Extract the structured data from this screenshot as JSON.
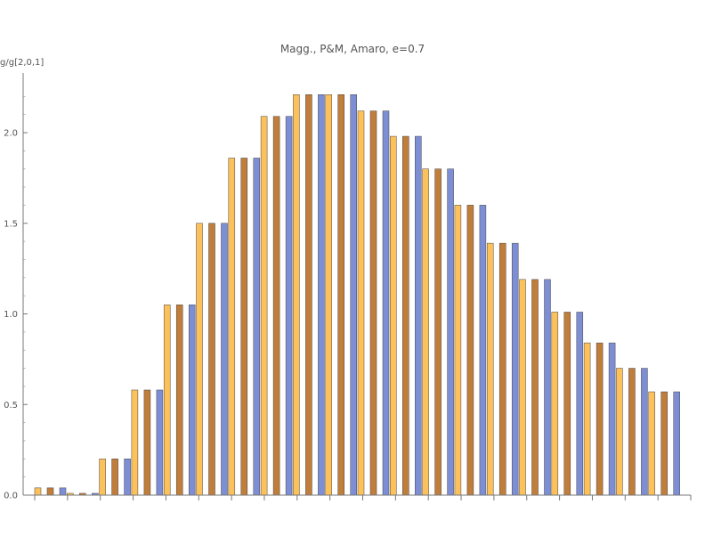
{
  "chart_data": {
    "type": "bar",
    "title": "Magg., P&M, Amaro, e=0.7",
    "ylabel": "g/g[2,0,1]",
    "xlabel": "",
    "ylim": [
      0,
      2.3
    ],
    "yticks": [
      0.0,
      0.5,
      1.0,
      1.5,
      2.0
    ],
    "ytick_labels": [
      "0.0",
      "0.5",
      "1.0",
      "1.5",
      "2.0"
    ],
    "x_tick_count": 21,
    "grid": false,
    "series": [
      {
        "color": "#FDC15B",
        "values": [
          0.04,
          0.01,
          0.2,
          0.58,
          1.05,
          1.5,
          1.86,
          2.09,
          2.21,
          2.21,
          2.12,
          1.98,
          1.8,
          1.6,
          1.39,
          1.19,
          1.01,
          0.84,
          0.7,
          0.57
        ]
      },
      {
        "color": "#C17D3A",
        "values": [
          0.04,
          0.01,
          0.2,
          0.58,
          1.05,
          1.5,
          1.86,
          2.09,
          2.21,
          2.21,
          2.12,
          1.98,
          1.8,
          1.6,
          1.39,
          1.19,
          1.01,
          0.84,
          0.7,
          0.57
        ]
      },
      {
        "color": "#7D8ED4",
        "values": [
          0.04,
          0.01,
          0.2,
          0.58,
          1.05,
          1.5,
          1.86,
          2.09,
          2.21,
          2.21,
          2.12,
          1.98,
          1.8,
          1.6,
          1.39,
          1.19,
          1.01,
          0.84,
          0.7,
          0.57
        ]
      }
    ]
  }
}
